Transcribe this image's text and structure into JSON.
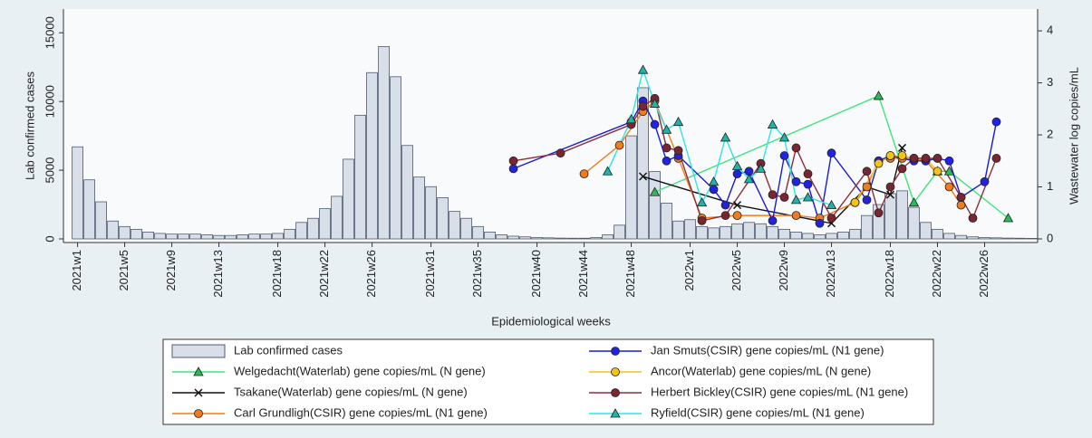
{
  "chart_data": {
    "type": "combo",
    "xlabel": "Epidemiological weeks",
    "ylabel": "Lab confirmed cases",
    "y2label": "Wastewater log copies/mL",
    "xlim": [
      -0.2,
      82.5
    ],
    "ylim": [
      0,
      16200
    ],
    "y2lim": [
      0,
      4.28
    ],
    "yticks": [
      0,
      5000,
      10000,
      15000
    ],
    "y2ticks": [
      0,
      1,
      2,
      3,
      4
    ],
    "xticks": [
      {
        "value": 1,
        "label": "2021w1"
      },
      {
        "value": 5,
        "label": "2021w5"
      },
      {
        "value": 9,
        "label": "2021w9"
      },
      {
        "value": 13,
        "label": "2021w13"
      },
      {
        "value": 18,
        "label": "2021w18"
      },
      {
        "value": 22,
        "label": "2021w22"
      },
      {
        "value": 26,
        "label": "2021w26"
      },
      {
        "value": 31,
        "label": "2021w31"
      },
      {
        "value": 35,
        "label": "2021w35"
      },
      {
        "value": 40,
        "label": "2021w40"
      },
      {
        "value": 44,
        "label": "2021w44"
      },
      {
        "value": 48,
        "label": "2021w48"
      },
      {
        "value": 53,
        "label": "2022w1"
      },
      {
        "value": 57,
        "label": "2022w5"
      },
      {
        "value": 61,
        "label": "2022w9"
      },
      {
        "value": 65,
        "label": "2022w13"
      },
      {
        "value": 70,
        "label": "2022w18"
      },
      {
        "value": 74,
        "label": "2022w22"
      },
      {
        "value": 78,
        "label": "2022w26"
      }
    ],
    "bars": {
      "name": "Lab confirmed cases",
      "color": "#d9dfe8",
      "edge": "#4d5b70",
      "x": [
        1,
        2,
        3,
        4,
        5,
        6,
        7,
        8,
        9,
        10,
        11,
        12,
        13,
        14,
        15,
        16,
        17,
        18,
        19,
        20,
        21,
        22,
        23,
        24,
        25,
        26,
        27,
        28,
        29,
        30,
        31,
        32,
        33,
        34,
        35,
        36,
        37,
        38,
        39,
        40,
        41,
        42,
        43,
        44,
        45,
        46,
        47,
        48,
        49,
        50,
        51,
        52,
        53,
        54,
        55,
        56,
        57,
        58,
        59,
        60,
        61,
        62,
        63,
        64,
        65,
        66,
        67,
        68,
        69,
        70,
        71,
        72,
        73,
        74,
        75,
        76,
        77,
        78,
        79,
        80,
        81,
        82
      ],
      "values": [
        6700,
        4300,
        2700,
        1300,
        900,
        700,
        500,
        400,
        350,
        350,
        350,
        300,
        250,
        250,
        300,
        350,
        350,
        400,
        700,
        1200,
        1500,
        2200,
        3100,
        5800,
        9000,
        12100,
        14000,
        11800,
        6800,
        4500,
        3800,
        3000,
        2000,
        1500,
        900,
        500,
        300,
        200,
        150,
        100,
        80,
        60,
        50,
        50,
        100,
        300,
        1000,
        7500,
        11000,
        4900,
        2600,
        1300,
        1400,
        900,
        800,
        900,
        1100,
        1200,
        1100,
        900,
        700,
        500,
        400,
        300,
        400,
        500,
        700,
        1700,
        2500,
        3300,
        3500,
        2300,
        1200,
        700,
        400,
        250,
        150,
        100,
        80,
        60,
        50,
        40
      ]
    },
    "series": [
      {
        "name": "Welgedacht(Waterlab) gene copies/mL (N gene)",
        "color": "#3ee67a",
        "marker": "triangle",
        "marker_color": "#2fb85a",
        "axis": "y2",
        "x": [
          50,
          69,
          72,
          74,
          75,
          80
        ],
        "values": [
          0.9,
          2.75,
          0.7,
          1.3,
          1.3,
          0.4
        ]
      },
      {
        "name": "Tsakane(Waterlab) gene copies/mL (N gene)",
        "color": "#111111",
        "marker": "x",
        "marker_color": "#111111",
        "axis": "y2",
        "x": [
          49,
          57,
          65,
          68,
          70,
          71
        ],
        "values": [
          1.2,
          0.65,
          0.3,
          1.0,
          0.85,
          1.75
        ]
      },
      {
        "name": "Carl Grundligh(CSIR) gene copies/mL (N1 gene)",
        "color": "#f07c1e",
        "marker": "circle",
        "marker_color": "#f07c1e",
        "axis": "y2",
        "x": [
          44,
          47,
          49,
          50,
          52,
          54,
          57,
          62,
          64,
          67,
          68,
          69,
          70,
          71,
          72,
          73,
          75,
          76
        ],
        "values": [
          1.25,
          1.8,
          2.45,
          2.65,
          1.55,
          0.4,
          0.45,
          0.45,
          0.4,
          0.7,
          1.0,
          1.5,
          1.55,
          1.55,
          1.55,
          1.5,
          1.0,
          0.65
        ]
      },
      {
        "name": "Jan Smuts(CSIR) gene copies/mL (N1 gene)",
        "color": "#1a1ad8",
        "marker": "circle",
        "marker_color": "#2222e0",
        "axis": "y2",
        "x": [
          38,
          48,
          49,
          50,
          51,
          52,
          55,
          56,
          57,
          58,
          60,
          61,
          62,
          63,
          64,
          65,
          68,
          69,
          70,
          72,
          73,
          74,
          75,
          76,
          78,
          79
        ],
        "values": [
          1.35,
          2.25,
          2.65,
          2.2,
          1.5,
          1.6,
          0.95,
          0.65,
          1.25,
          1.3,
          0.35,
          1.6,
          1.1,
          1.05,
          0.3,
          1.65,
          0.75,
          1.5,
          1.6,
          1.5,
          1.5,
          1.55,
          1.5,
          0.8,
          1.1,
          2.25
        ]
      },
      {
        "name": "Ancor(Waterlab) gene copies/mL (N gene)",
        "color": "#f2c318",
        "marker": "circle",
        "marker_color": "#f2c318",
        "axis": "y2",
        "x": [
          67,
          69,
          70,
          71,
          72,
          73,
          74
        ],
        "values": [
          0.7,
          1.45,
          1.6,
          1.6,
          1.55,
          1.55,
          1.3
        ]
      },
      {
        "name": "Herbert Bickley(CSIR) gene copies/mL (N1 gene)",
        "color": "#8b2e3a",
        "marker": "circle",
        "marker_color": "#7a2632",
        "axis": "y2",
        "x": [
          38,
          42,
          48,
          49,
          50,
          51,
          52,
          54,
          56,
          59,
          60,
          61,
          62,
          63,
          65,
          68,
          69,
          70,
          71,
          72,
          73,
          74,
          76,
          77,
          79
        ],
        "values": [
          1.5,
          1.65,
          2.2,
          2.55,
          2.7,
          1.75,
          1.7,
          0.35,
          0.45,
          1.45,
          0.85,
          0.8,
          1.75,
          1.25,
          0.4,
          1.3,
          0.5,
          1.0,
          1.35,
          1.55,
          1.55,
          1.55,
          0.8,
          0.4,
          1.55
        ]
      },
      {
        "name": "Ryfield(CSIR) gene copies/mL (N1 gene)",
        "color": "#2ee6e6",
        "marker": "triangle",
        "marker_color": "#22b3a8",
        "axis": "y2",
        "x": [
          46,
          48,
          49,
          50,
          51,
          52,
          54,
          55,
          56,
          57,
          58,
          59,
          60,
          61,
          62,
          63,
          65
        ],
        "values": [
          1.3,
          2.3,
          3.25,
          2.6,
          2.1,
          2.25,
          0.7,
          1.1,
          1.95,
          1.4,
          1.15,
          1.35,
          2.2,
          1.95,
          0.75,
          0.8,
          0.65
        ]
      }
    ]
  }
}
